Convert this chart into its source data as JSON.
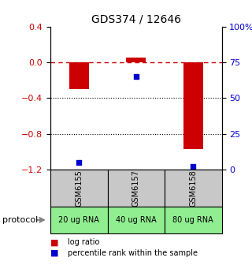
{
  "title": "GDS374 / 12646",
  "samples": [
    "GSM6155",
    "GSM6157",
    "GSM6158"
  ],
  "log_ratios": [
    -0.3,
    0.05,
    -0.97
  ],
  "percentile_ranks": [
    5,
    65,
    2
  ],
  "ylim_left": [
    -1.2,
    0.4
  ],
  "ylim_right": [
    0,
    100
  ],
  "yticks_left": [
    -1.2,
    -0.8,
    -0.4,
    0.0,
    0.4
  ],
  "yticks_right": [
    0,
    25,
    50,
    75,
    100
  ],
  "ytick_labels_right": [
    "0",
    "25",
    "50",
    "75",
    "100%"
  ],
  "hline_y": 0.0,
  "dotted_lines": [
    -0.4,
    -0.8
  ],
  "bar_color": "#cc0000",
  "point_color": "#0000cc",
  "bar_width": 0.35,
  "protocol_labels": [
    "20 ug RNA",
    "40 ug RNA",
    "80 ug RNA"
  ],
  "gray_color": "#c8c8c8",
  "green_color": "#90ee90",
  "protocol_text": "protocol",
  "legend_log_ratio": "log ratio",
  "legend_percentile": "percentile rank within the sample",
  "title_fontsize": 10,
  "axis_fontsize": 8,
  "label_fontsize": 7
}
